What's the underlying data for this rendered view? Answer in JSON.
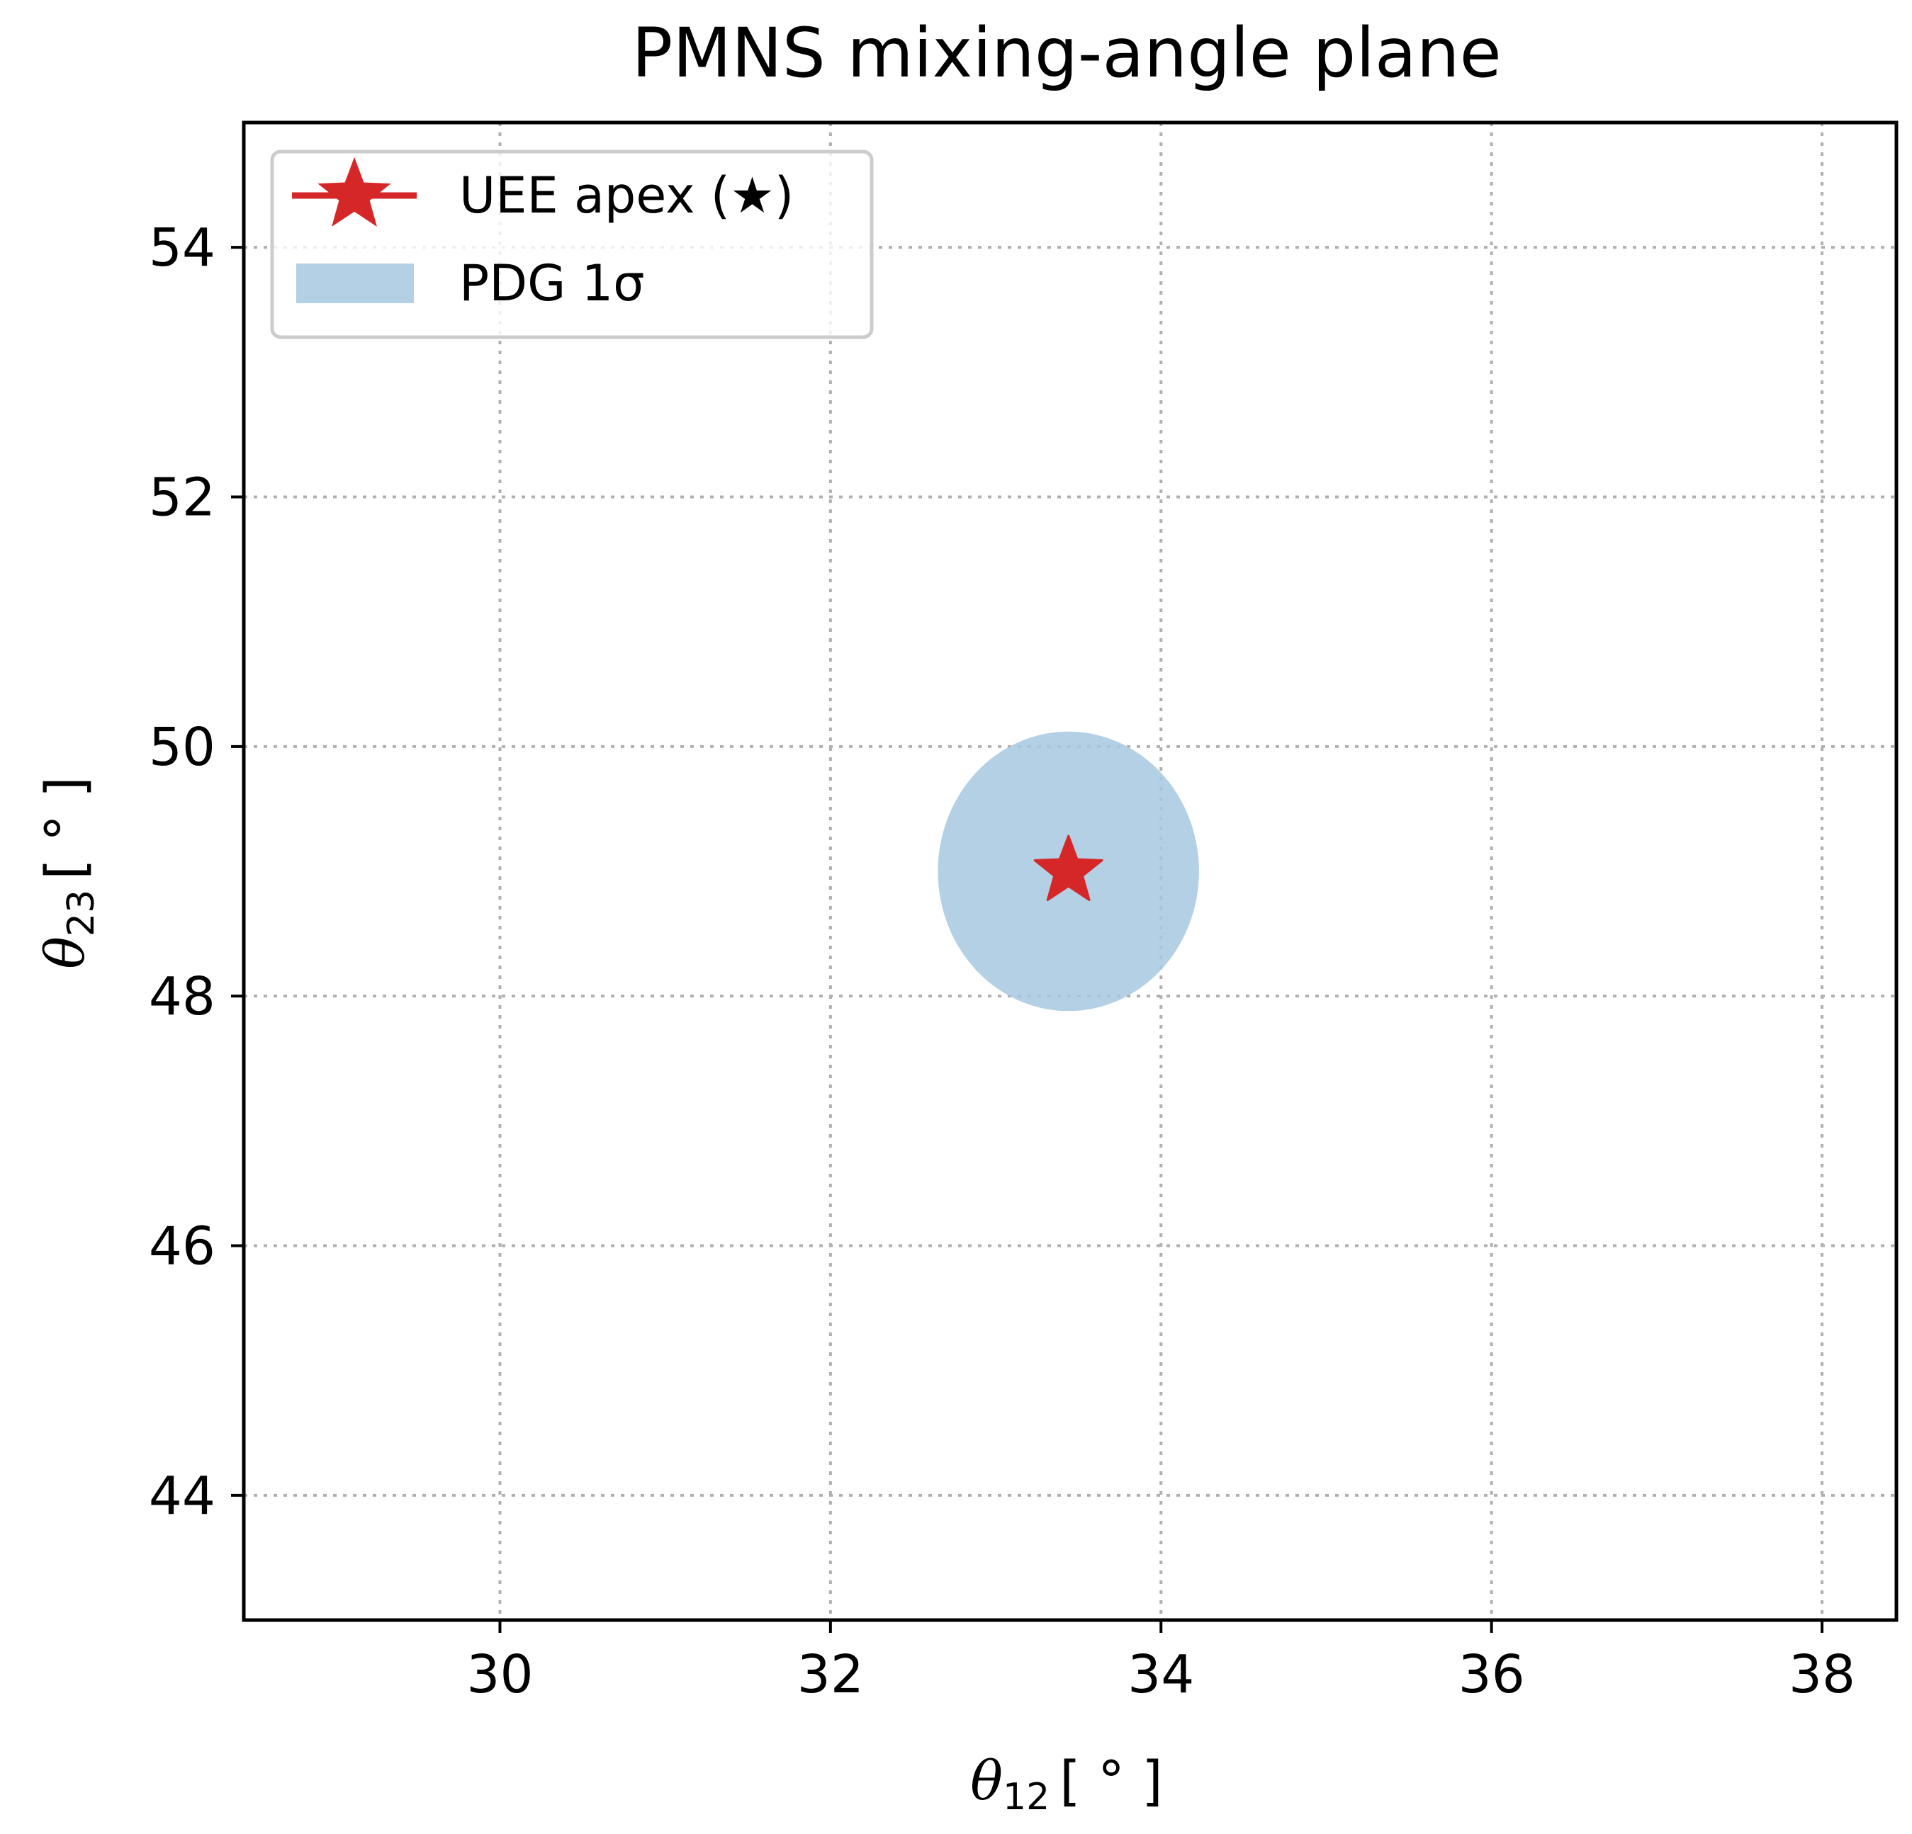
{
  "chart_data": {
    "type": "scatter",
    "title": "PMNS mixing-angle plane",
    "xlabel": {
      "symbol": "θ",
      "sub": "12",
      "unit": "[ ° ]"
    },
    "ylabel": {
      "symbol": "θ",
      "sub": "23",
      "unit": "[ ° ]"
    },
    "xlim": [
      28.45,
      38.45
    ],
    "ylim": [
      43,
      55
    ],
    "xticks": [
      30,
      32,
      34,
      36,
      38
    ],
    "yticks": [
      44,
      46,
      48,
      50,
      52,
      54
    ],
    "grid": true,
    "legend_position": "top-left",
    "series": [
      {
        "name": "UEE apex (★)",
        "kind": "star",
        "x": [
          33.44
        ],
        "y": [
          49.0
        ],
        "color": "#d62728"
      }
    ],
    "regions": [
      {
        "name": "PDG 1σ",
        "kind": "ellipse",
        "center_x": 33.44,
        "center_y": 49.0,
        "half_width_x": 0.79,
        "half_width_y": 1.12,
        "color": "#a6c8e0"
      }
    ]
  }
}
